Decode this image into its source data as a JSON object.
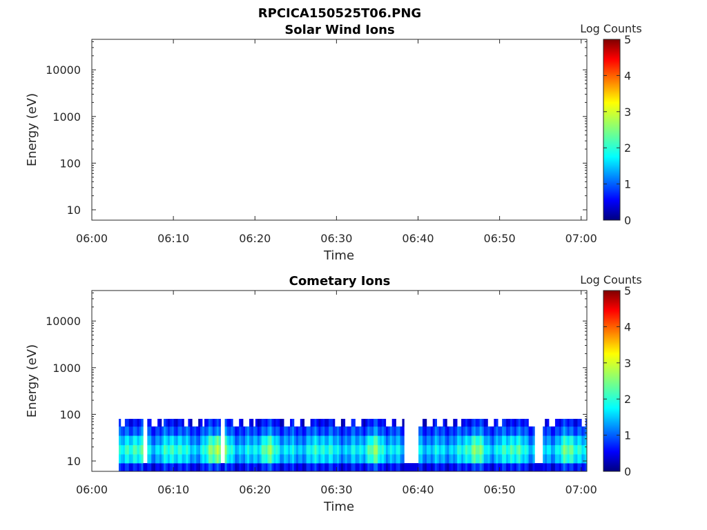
{
  "figure_title": "RPCICA150525T06.PNG",
  "colors": {
    "axis": "#262626",
    "colormap": [
      "#00007f",
      "#0000ff",
      "#007fff",
      "#00ffff",
      "#7fff7f",
      "#ffff00",
      "#ff7f00",
      "#ff0000",
      "#7f0000"
    ]
  },
  "chart_data": [
    {
      "type": "heatmap",
      "title": "Solar Wind Ions",
      "xlabel": "Time",
      "ylabel": "Energy (eV)",
      "x_ticks": [
        "06:00",
        "06:10",
        "06:20",
        "06:30",
        "06:40",
        "06:50",
        "07:00"
      ],
      "x_range_minutes": [
        0,
        60.7
      ],
      "y_scale": "log",
      "y_ticks": [
        10,
        100,
        1000,
        10000
      ],
      "y_tick_labels": [
        "10",
        "100",
        "1000",
        "10000"
      ],
      "y_range": [
        6,
        45000
      ],
      "colorbar": {
        "label": "Log Counts",
        "range": [
          0,
          5
        ],
        "ticks": [
          "0",
          "1",
          "2",
          "3",
          "4",
          "5"
        ]
      },
      "data_description": "no counts shown",
      "bands": []
    },
    {
      "type": "heatmap",
      "title": "Cometary Ions",
      "xlabel": "Time",
      "ylabel": "Energy (eV)",
      "x_ticks": [
        "06:00",
        "06:10",
        "06:20",
        "06:30",
        "06:40",
        "06:50",
        "07:00"
      ],
      "x_range_minutes": [
        0,
        60.7
      ],
      "y_scale": "log",
      "y_ticks": [
        10,
        100,
        1000,
        10000
      ],
      "y_tick_labels": [
        "10",
        "100",
        "1000",
        "10000"
      ],
      "y_range": [
        6,
        45000
      ],
      "colorbar": {
        "label": "Log Counts",
        "range": [
          0,
          5
        ],
        "ticks": [
          "0",
          "1",
          "2",
          "3",
          "4",
          "5"
        ]
      },
      "data_start_minute": 3.3,
      "data_end_minute": 60.7,
      "energy_range_eV": [
        6,
        80
      ],
      "bands": [
        {
          "e_lo": 6,
          "e_hi": 9,
          "value": 0.6
        },
        {
          "e_lo": 9,
          "e_hi": 14,
          "value": 1.4
        },
        {
          "e_lo": 14,
          "e_hi": 22,
          "value": 1.7
        },
        {
          "e_lo": 22,
          "e_hi": 35,
          "value": 1.3
        },
        {
          "e_lo": 35,
          "e_hi": 55,
          "value": 0.9
        },
        {
          "e_lo": 55,
          "e_hi": 80,
          "value": 0.5
        }
      ],
      "peaks": [
        {
          "t": 5.2,
          "value": 2.1
        },
        {
          "t": 10.0,
          "value": 2.0
        },
        {
          "t": 15.3,
          "value": 2.6
        },
        {
          "t": 21.5,
          "value": 2.2
        },
        {
          "t": 28.0,
          "value": 1.9
        },
        {
          "t": 34.5,
          "value": 2.2
        },
        {
          "t": 46.8,
          "value": 2.3
        },
        {
          "t": 51.5,
          "value": 2.1
        },
        {
          "t": 58.5,
          "value": 2.2
        }
      ],
      "gaps": [
        {
          "t0": 6.2,
          "t1": 6.6,
          "e_top": 80
        },
        {
          "t0": 15.6,
          "t1": 16.3,
          "e_top": 80
        },
        {
          "t0": 38.3,
          "t1": 40.0,
          "e_top": 80
        },
        {
          "t0": 54.3,
          "t1": 55.2,
          "e_top": 80
        }
      ]
    }
  ]
}
